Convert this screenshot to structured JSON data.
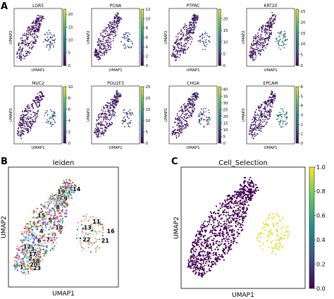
{
  "panel_letters": {
    "a": "A",
    "b": "B",
    "c": "C"
  },
  "chart_data": [
    {
      "type": "scatter",
      "title": "LGR5",
      "xlabel": "UMAP1",
      "ylabel": "UMAP2",
      "colorbar": {
        "ticks": [
          0,
          5,
          10,
          15,
          20
        ],
        "range": [
          0,
          22
        ]
      },
      "colormap": "viridis"
    },
    {
      "type": "scatter",
      "title": "PCNA",
      "xlabel": "UMAP1",
      "ylabel": "UMAP2",
      "colorbar": {
        "ticks": [
          0,
          2,
          4,
          6,
          8,
          10,
          12
        ],
        "range": [
          0,
          12
        ]
      },
      "colormap": "viridis"
    },
    {
      "type": "scatter",
      "title": "PTPRC",
      "xlabel": "UMAP1",
      "ylabel": "UMAP2",
      "colorbar": {
        "ticks": [
          0,
          5,
          10,
          15,
          20
        ],
        "range": [
          0,
          24
        ]
      },
      "colormap": "viridis"
    },
    {
      "type": "scatter",
      "title": "KRT20",
      "xlabel": "UMAP1",
      "ylabel": "UMAP2",
      "colorbar": {
        "ticks": [
          0,
          5,
          10,
          15,
          20,
          25
        ],
        "range": [
          0,
          26
        ]
      },
      "colormap": "viridis"
    },
    {
      "type": "scatter",
      "title": "MUC2",
      "xlabel": "UMAP1",
      "ylabel": "UMAP2",
      "colorbar": {
        "ticks": [
          0,
          2,
          4,
          6,
          8,
          10
        ],
        "range": [
          0,
          10
        ]
      },
      "colormap": "viridis"
    },
    {
      "type": "scatter",
      "title": "POU2F3",
      "xlabel": "UMAP1",
      "ylabel": "UMAP2",
      "colorbar": {
        "ticks": [
          0,
          5,
          10,
          15,
          20,
          25
        ],
        "range": [
          0,
          25
        ]
      },
      "colormap": "viridis"
    },
    {
      "type": "scatter",
      "title": "CHGA",
      "xlabel": "UMAP1",
      "ylabel": "UMAP2",
      "colorbar": {
        "ticks": [
          0,
          5,
          10,
          15,
          20,
          25,
          30,
          35,
          40
        ],
        "range": [
          0,
          42
        ]
      },
      "colormap": "viridis"
    },
    {
      "type": "scatter",
      "title": "EPCAM",
      "xlabel": "UMAP1",
      "ylabel": "UMAP2",
      "colorbar": {
        "ticks": [
          0,
          1,
          2,
          3,
          4,
          5,
          6
        ],
        "range": [
          0,
          6
        ]
      },
      "colormap": "viridis"
    },
    {
      "type": "scatter",
      "title": "leiden",
      "xlabel": "UMAP1",
      "ylabel": "UMAP2",
      "cluster_labels": [
        "1",
        "2",
        "3",
        "4",
        "5",
        "6",
        "7",
        "8",
        "9",
        "10",
        "11",
        "12",
        "13",
        "14",
        "15",
        "16",
        "17",
        "18",
        "19",
        "20",
        "21",
        "22",
        "23"
      ],
      "colors": [
        "#1f77b4",
        "#ff7f0e",
        "#279e68",
        "#d62728",
        "#aa40fc",
        "#8c564b",
        "#e377c2",
        "#b5bd61",
        "#17becf",
        "#aec7e8",
        "#ffbb78",
        "#98df8a",
        "#ff9896",
        "#c5b0d5",
        "#c49c94",
        "#f7b6d2",
        "#dbdb8d",
        "#9edae5",
        "#ad494a",
        "#8c6d31",
        "#0000cd",
        "#ff69b4",
        "#2e8b57"
      ]
    },
    {
      "type": "scatter",
      "title": "Cell_Selection",
      "xlabel": "UMAP1",
      "ylabel": "UMAP2",
      "colorbar": {
        "ticks": [
          0.0,
          0.2,
          0.4,
          0.6,
          0.8,
          1.0
        ],
        "range": [
          0,
          1
        ]
      },
      "colormap": "viridis"
    }
  ]
}
